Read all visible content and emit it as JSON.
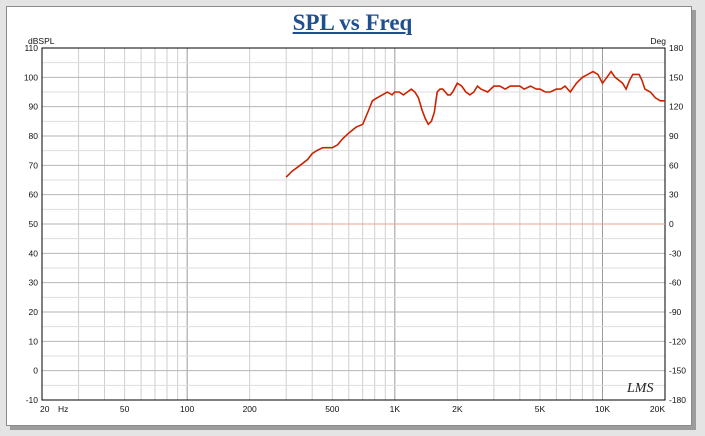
{
  "chart_data": {
    "type": "line",
    "title": "SPL vs Freq",
    "ylabel_left": "dBSPL",
    "ylabel_right": "Deg",
    "x_scale": "log",
    "xlim": [
      20,
      20000
    ],
    "ylim": [
      -10,
      110
    ],
    "y2lim": [
      -180,
      180
    ],
    "grid": true,
    "x_tick_values": [
      20,
      50,
      100,
      200,
      500,
      1000,
      2000,
      5000,
      10000,
      20000
    ],
    "x_tick_labels": [
      "20",
      "50",
      "100",
      "200",
      "500",
      "1K",
      "2K",
      "5K",
      "10K",
      "20K"
    ],
    "x_unit_label": "Hz",
    "y_ticks": [
      "110",
      "100",
      "90",
      "80",
      "70",
      "60",
      "50",
      "40",
      "30",
      "20",
      "10",
      "0",
      "-10"
    ],
    "y2_ticks": [
      "180",
      "150",
      "120",
      "90",
      "60",
      "30",
      "0",
      "-30",
      "-60",
      "-90",
      "-120",
      "-150",
      "-180"
    ],
    "series": [
      {
        "color": "#cc2200",
        "x": [
          300,
          320,
          350,
          380,
          400,
          420,
          450,
          480,
          500,
          530,
          560,
          600,
          650,
          700,
          740,
          780,
          820,
          870,
          920,
          970,
          1000,
          1050,
          1100,
          1150,
          1200,
          1250,
          1300,
          1350,
          1400,
          1450,
          1500,
          1550,
          1600,
          1650,
          1700,
          1750,
          1800,
          1850,
          1900,
          2000,
          2100,
          2200,
          2300,
          2400,
          2500,
          2600,
          2800,
          3000,
          3200,
          3400,
          3600,
          3800,
          4000,
          4200,
          4500,
          4800,
          5000,
          5300,
          5600,
          6000,
          6300,
          6600,
          7000,
          7500,
          8000,
          8500,
          9000,
          9500,
          10000,
          10500,
          11000,
          11500,
          12000,
          12500,
          13000,
          13500,
          14000,
          14500,
          15000,
          15500,
          16000,
          17000,
          18000,
          19000,
          20000
        ],
        "y": [
          66,
          68,
          70,
          72,
          74,
          75,
          76,
          76,
          76,
          77,
          79,
          81,
          83,
          84,
          88,
          92,
          93,
          94,
          95,
          94,
          95,
          95,
          94,
          95,
          96,
          95,
          93,
          89,
          86,
          84,
          85,
          88,
          95,
          96,
          96,
          95,
          94,
          94,
          95,
          98,
          97,
          95,
          94,
          95,
          97,
          96,
          95,
          97,
          97,
          96,
          97,
          97,
          97,
          96,
          97,
          96,
          96,
          95,
          95,
          96,
          96,
          97,
          95,
          98,
          100,
          101,
          102,
          101,
          98,
          100,
          102,
          100,
          99,
          98,
          96,
          99,
          101,
          101,
          101,
          99,
          96,
          95,
          93,
          92,
          92
        ]
      },
      {
        "color": "#f0a090",
        "x": [
          300,
          20000
        ],
        "y": [
          50,
          50
        ]
      }
    ]
  },
  "logo_text": "LMS"
}
